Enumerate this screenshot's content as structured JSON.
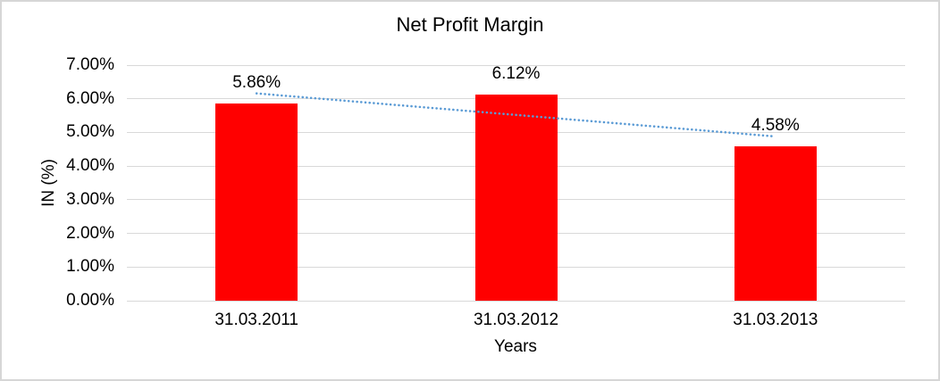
{
  "window": {
    "background": "#ffffff",
    "border_color": "#d6d6d6"
  },
  "chart_data": {
    "type": "bar",
    "title": "Net Profit Margin",
    "xlabel": "Years",
    "ylabel": "IN (%)",
    "categories": [
      "31.03.2011",
      "31.03.2012",
      "31.03.2013"
    ],
    "series": [
      {
        "name": "Net Profit Margin",
        "values": [
          5.86,
          6.12,
          4.58
        ]
      }
    ],
    "data_labels": [
      "5.86%",
      "6.12%",
      "4.58%"
    ],
    "ytick_labels": [
      "0.00%",
      "1.00%",
      "2.00%",
      "3.00%",
      "4.00%",
      "5.00%",
      "6.00%",
      "7.00%"
    ],
    "ylim": [
      0,
      7
    ],
    "grid": true,
    "legend": "none",
    "bar_color": "#ff0000",
    "gridline_color": "#d9d9d9",
    "text_color": "#000000",
    "trendline": {
      "type": "linear",
      "style": "dotted",
      "color": "#5b9bd5"
    }
  }
}
